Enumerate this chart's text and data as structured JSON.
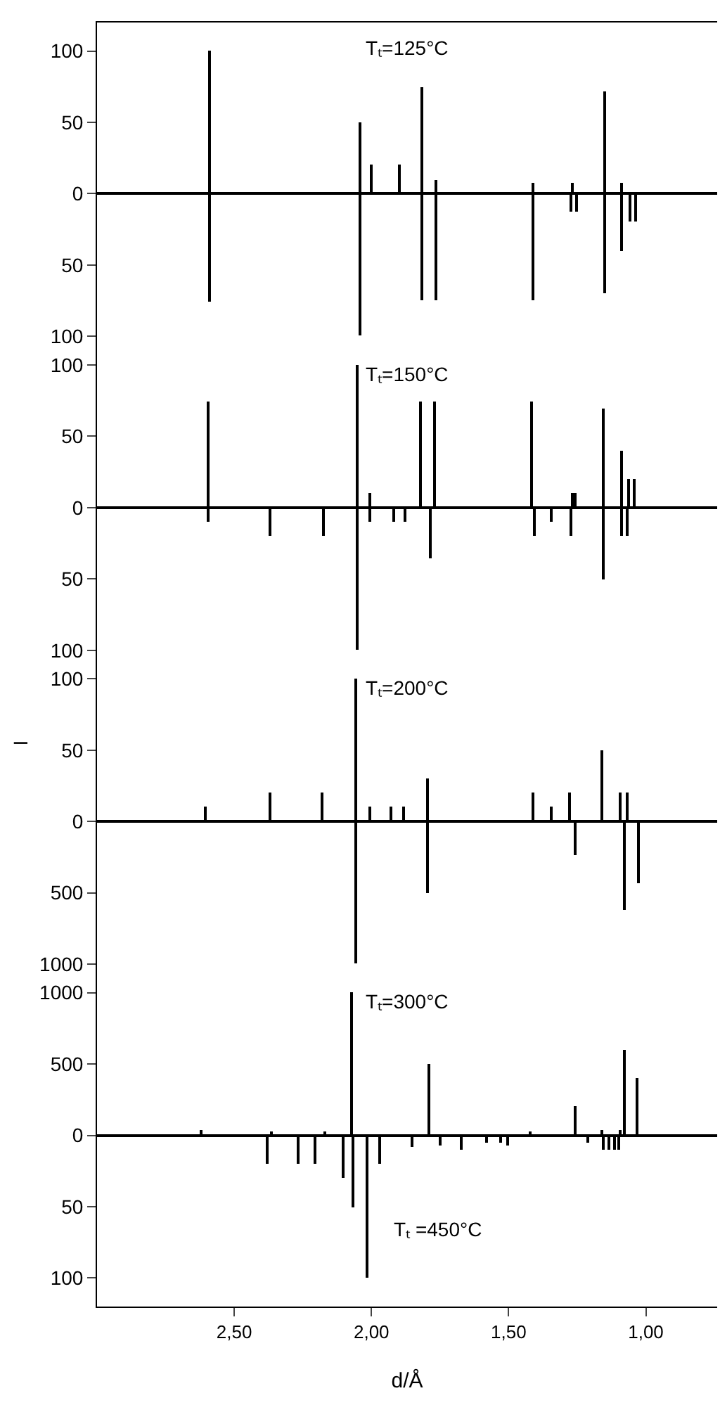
{
  "chart_data": [
    {
      "type": "bar",
      "color": "#000000",
      "xlim": [
        3.0,
        0.74
      ],
      "ylim": [
        0,
        120
      ],
      "yticks": [
        0,
        50,
        100
      ],
      "tick_labels": "y",
      "annotations": [
        "Tₜ=125°C"
      ],
      "x": [
        2.59,
        2.045,
        2.004,
        1.9,
        1.818,
        1.768,
        1.411,
        1.271,
        1.151,
        1.091
      ],
      "values": [
        100,
        50,
        20,
        20,
        75,
        10,
        8,
        8,
        72,
        8
      ]
    },
    {
      "type": "bar",
      "color": "#000000",
      "xlim": [
        3.0,
        0.74
      ],
      "ylim": [
        110,
        0
      ],
      "yticks": [
        50,
        100
      ],
      "tick_labels": "y",
      "x": [
        2.59,
        2.045,
        1.818,
        1.768,
        1.411,
        1.274,
        1.254,
        1.151,
        1.091,
        1.061,
        1.04
      ],
      "values": [
        76,
        100,
        75,
        75,
        75,
        13,
        13,
        70,
        40,
        20,
        20
      ]
    },
    {
      "type": "bar",
      "color": "#000000",
      "xlim": [
        3.0,
        0.74
      ],
      "ylim": [
        0,
        110
      ],
      "yticks": [
        0,
        50,
        100
      ],
      "tick_labels": "y",
      "annotations": [
        "Tₜ=150°C"
      ],
      "x": [
        2.596,
        2.054,
        2.006,
        1.823,
        1.772,
        1.415,
        1.271,
        1.257,
        1.156,
        1.09,
        1.066,
        1.045
      ],
      "values": [
        75,
        100,
        10,
        75,
        75,
        75,
        10,
        10,
        70,
        40,
        20,
        20
      ]
    },
    {
      "type": "bar",
      "color": "#000000",
      "xlim": [
        3.0,
        0.74
      ],
      "ylim": [
        110,
        0
      ],
      "yticks": [
        50,
        100
      ],
      "tick_labels": "y",
      "x": [
        2.596,
        2.37,
        2.175,
        2.054,
        2.006,
        1.921,
        1.878,
        1.787,
        1.408,
        1.348,
        1.274,
        1.156,
        1.09,
        1.071
      ],
      "values": [
        10,
        20,
        20,
        100,
        10,
        10,
        10,
        35,
        20,
        10,
        20,
        50,
        20,
        20
      ]
    },
    {
      "type": "bar",
      "color": "#000000",
      "xlim": [
        3.0,
        0.74
      ],
      "ylim": [
        0,
        110
      ],
      "yticks": [
        0,
        50,
        100
      ],
      "tick_labels": "y",
      "ylabel": "I",
      "annotations": [
        "Tₜ=200°C"
      ],
      "x": [
        2.608,
        2.37,
        2.18,
        2.06,
        2.009,
        1.929,
        1.883,
        1.796,
        1.411,
        1.348,
        1.279,
        1.16,
        1.097,
        1.071
      ],
      "values": [
        10,
        20,
        20,
        100,
        10,
        10,
        10,
        30,
        20,
        10,
        20,
        50,
        20,
        20
      ]
    },
    {
      "type": "bar",
      "color": "#000000",
      "xlim": [
        3.0,
        0.74
      ],
      "ylim": [
        1100,
        0
      ],
      "yticks": [
        500,
        1000
      ],
      "tick_labels": "y",
      "x": [
        2.06,
        1.796,
        1.257,
        1.078,
        1.028
      ],
      "values": [
        1000,
        500,
        240,
        620,
        430
      ]
    },
    {
      "type": "bar",
      "color": "#000000",
      "xlim": [
        3.0,
        0.74
      ],
      "ylim": [
        0,
        1100
      ],
      "yticks": [
        0,
        500,
        1000
      ],
      "tick_labels": "y",
      "annotations": [
        "Tₜ=300°C"
      ],
      "x": [
        2.621,
        2.368,
        2.173,
        2.074,
        1.794,
        1.425,
        1.259,
        1.163,
        1.097,
        1.08,
        1.032
      ],
      "values": [
        40,
        30,
        30,
        1000,
        500,
        30,
        200,
        40,
        40,
        600,
        400
      ]
    },
    {
      "type": "bar",
      "color": "#000000",
      "xlim": [
        3.0,
        0.74
      ],
      "ylim": [
        120,
        0
      ],
      "yticks": [
        50,
        100
      ],
      "xticks": [
        {
          "value": 2.5,
          "label": "2,50"
        },
        {
          "value": 2.0,
          "label": "2,00"
        },
        {
          "value": 1.5,
          "label": "1,50"
        },
        {
          "value": 1.0,
          "label": "1,00"
        }
      ],
      "xlabel": "d/Å",
      "annotations": [
        "Tₜ =450°C"
      ],
      "x": [
        2.38,
        2.269,
        2.208,
        2.102,
        2.069,
        2.018,
        1.97,
        1.852,
        1.753,
        1.676,
        1.579,
        1.531,
        1.507,
        1.21,
        1.156,
        1.134,
        1.117,
        1.1
      ],
      "values": [
        20,
        20,
        20,
        30,
        50,
        100,
        20,
        8,
        7,
        10,
        5,
        5,
        7,
        5,
        10,
        10,
        10,
        10
      ]
    }
  ]
}
